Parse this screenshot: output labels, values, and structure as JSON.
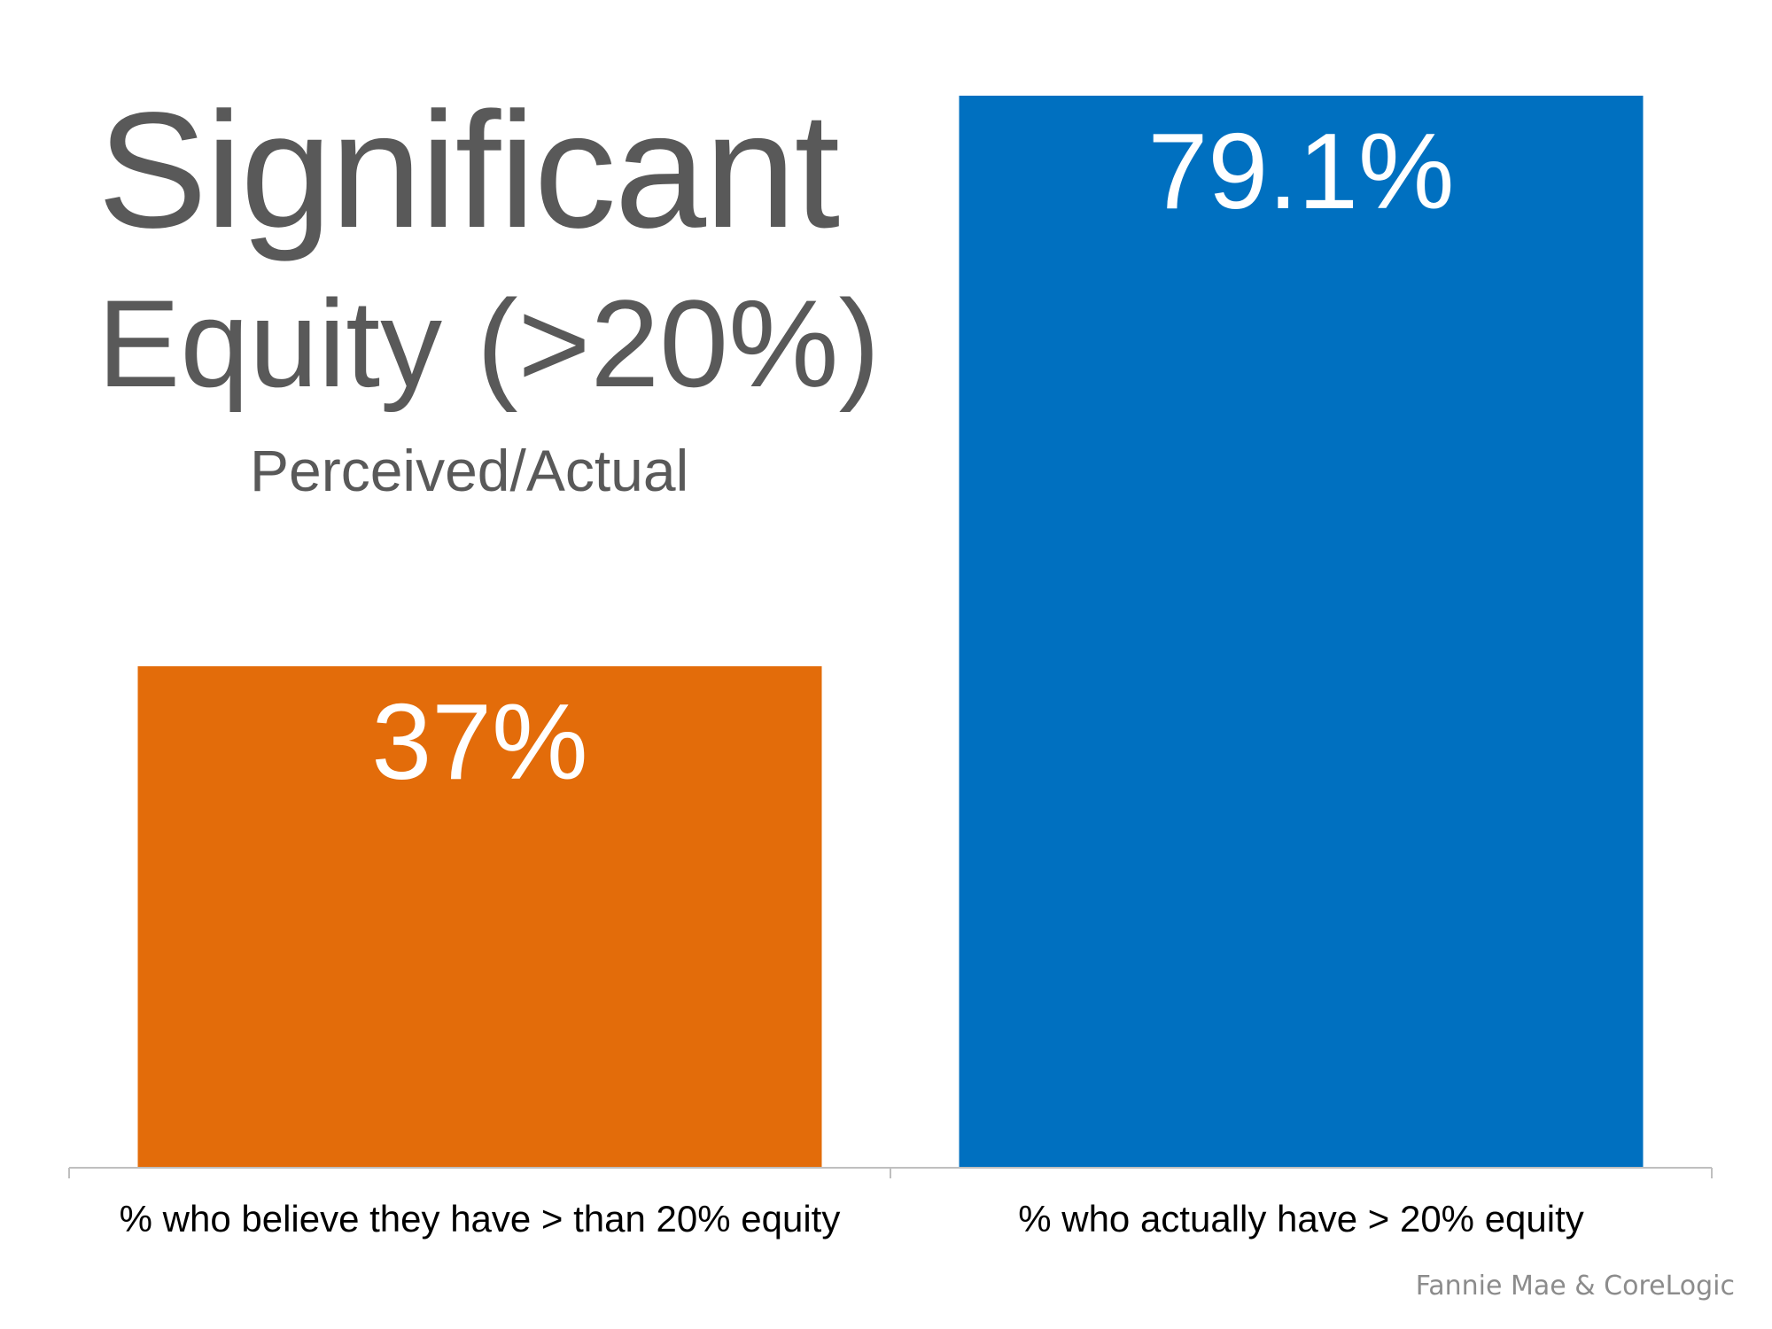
{
  "header": {
    "title_line1": "Significant",
    "title_line2": "Equity (>20%)",
    "subtitle": "Perceived/Actual"
  },
  "source": "Fannie Mae & CoreLogic",
  "chart_data": {
    "type": "bar",
    "title": "Significant Equity (>20%)",
    "subtitle": "Perceived/Actual",
    "categories": [
      "% who believe they have > than 20% equity",
      "% who actually have > 20% equity"
    ],
    "values": [
      37,
      79.1
    ],
    "data_labels": [
      "37%",
      "79.1%"
    ],
    "colors": [
      "#E36C0A",
      "#0070C0"
    ],
    "ylim": [
      0,
      79.1
    ],
    "grid": false,
    "legend": "none",
    "xlabel": "",
    "ylabel": ""
  }
}
